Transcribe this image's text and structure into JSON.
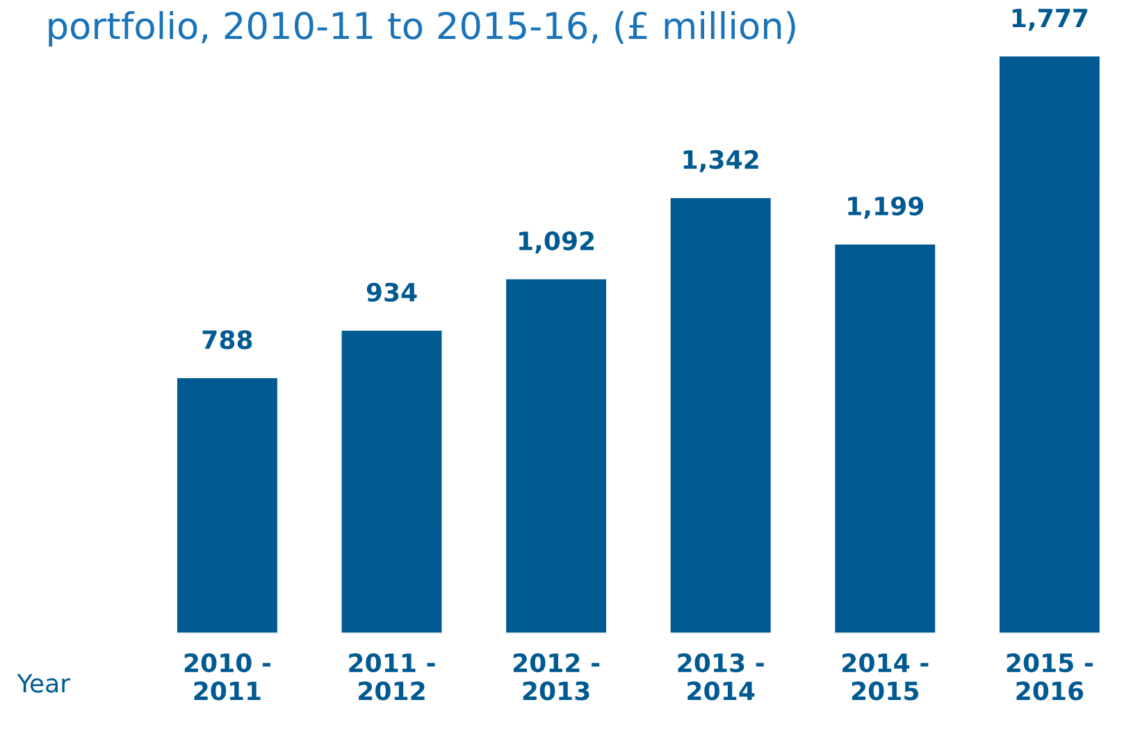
{
  "chart_data": {
    "type": "bar",
    "title": "portfolio, 2010-11 to 2015-16, (£ million)",
    "xlabel": "Year",
    "categories": [
      "2010 -\n2011",
      "2011 -\n2012",
      "2012 -\n2013",
      "2013 -\n2014",
      "2014 -\n2015",
      "2015 -\n2016"
    ],
    "values": [
      788,
      934,
      1092,
      1342,
      1199,
      1777
    ],
    "value_labels": [
      "788",
      "934",
      "1,092",
      "1,342",
      "1,199",
      "1,777"
    ],
    "color": "#005a91",
    "grid": false,
    "legend": false
  }
}
